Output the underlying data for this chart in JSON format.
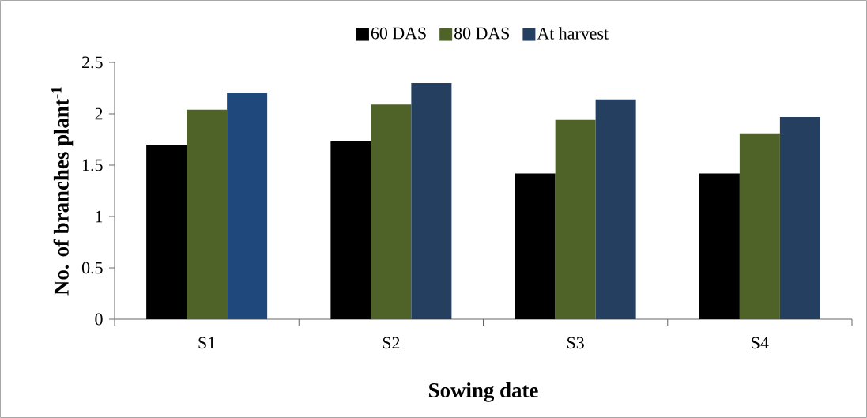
{
  "chart_data": {
    "type": "bar",
    "xlabel": "Sowing date",
    "ylabel": "No. of branches plant$^{-1}$",
    "categories": [
      "S1",
      "S2",
      "S3",
      "S4"
    ],
    "series": [
      {
        "name": "60 DAS",
        "color": "#000000",
        "values": [
          1.7,
          1.73,
          1.42,
          1.42
        ]
      },
      {
        "name": "80 DAS",
        "color": "#4f6228",
        "values": [
          2.04,
          2.09,
          1.94,
          1.81
        ]
      },
      {
        "name": "At harvest",
        "color": "#243f60",
        "colors": [
          "#1f497d",
          "#243f60",
          "#243f60",
          "#243f60"
        ],
        "values": [
          2.2,
          2.3,
          2.14,
          1.97
        ]
      }
    ],
    "ylim": [
      0,
      2.5
    ],
    "yticks": [
      0,
      0.5,
      1,
      1.5,
      2,
      2.5
    ],
    "legend": "top"
  }
}
